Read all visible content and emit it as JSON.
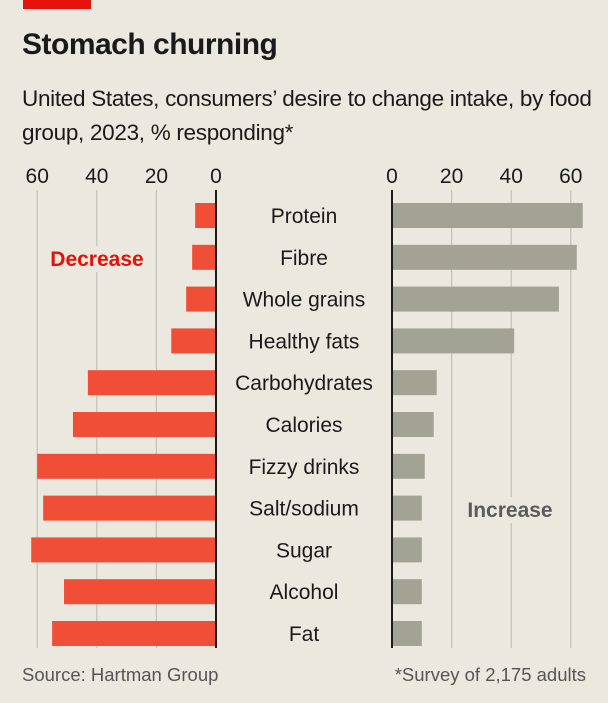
{
  "header": {
    "title": "Stomach churning",
    "subtitle": "United States, consumers’ desire to change intake, by food group, 2023, % responding*"
  },
  "footer": {
    "source": "Source: Hartman Group",
    "note": "*Survey of 2,175 adults"
  },
  "colors": {
    "accent": "#e3120b",
    "decrease_bar": "#f04e37",
    "increase_bar": "#a3a395",
    "background": "#ebe9df",
    "gridline": "#c4c3bb",
    "axis": "#1a1a1a"
  },
  "chart_data": {
    "type": "bar",
    "orientation": "horizontal-diverging",
    "title": "Stomach churning",
    "subtitle": "United States, consumers’ desire to change intake, by food group, 2023, % responding*",
    "categories": [
      "Protein",
      "Fibre",
      "Whole grains",
      "Healthy fats",
      "Carbohydrates",
      "Calories",
      "Fizzy drinks",
      "Salt/sodium",
      "Sugar",
      "Alcohol",
      "Fat"
    ],
    "series": [
      {
        "name": "Decrease",
        "side": "left",
        "values": [
          7,
          8,
          10,
          15,
          43,
          48,
          60,
          58,
          62,
          51,
          55
        ]
      },
      {
        "name": "Increase",
        "side": "right",
        "values": [
          64,
          62,
          56,
          41,
          15,
          14,
          11,
          10,
          10,
          10,
          10
        ]
      }
    ],
    "xlim": [
      0,
      60
    ],
    "ticks": [
      0,
      20,
      40,
      60
    ],
    "tick_labels": [
      "0",
      "20",
      "40",
      "60"
    ],
    "grid": true,
    "xlabel": "",
    "ylabel": "",
    "source": "Source: Hartman Group",
    "note": "*Survey of 2,175 adults"
  }
}
